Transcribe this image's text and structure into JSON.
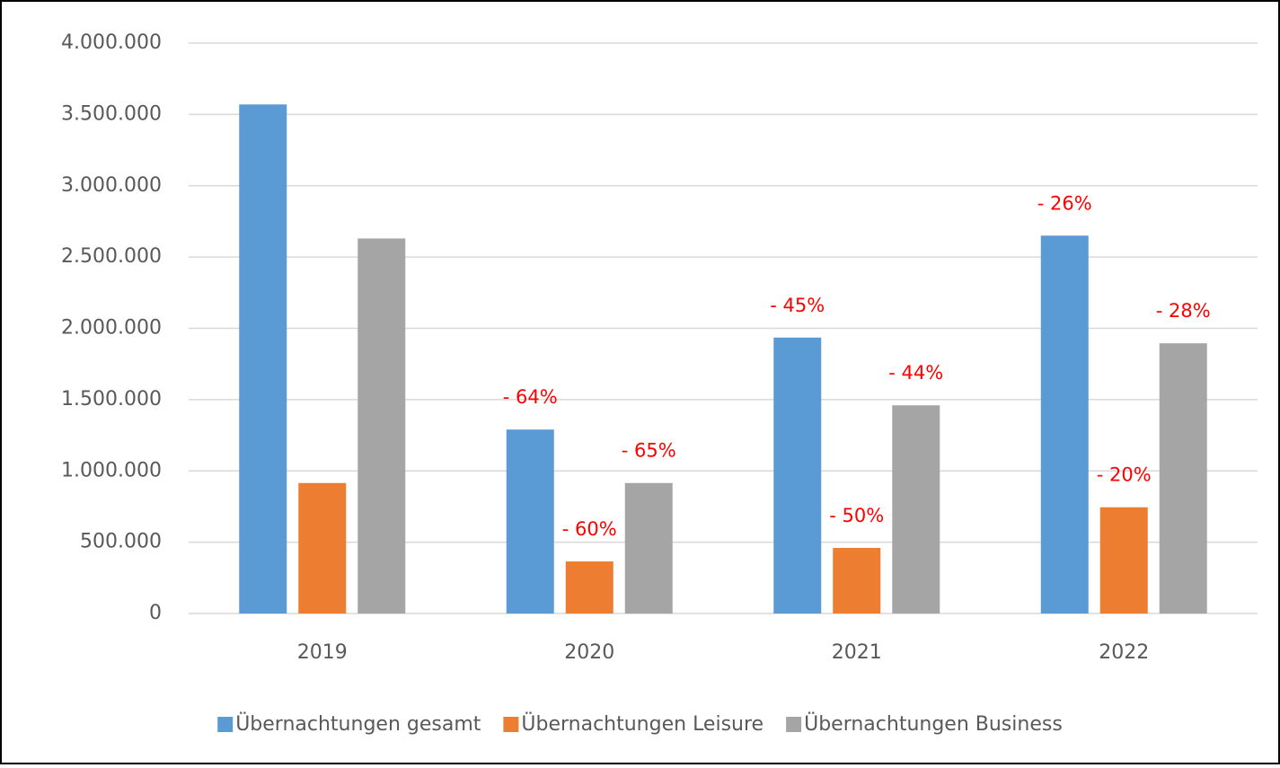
{
  "chart_data": {
    "type": "bar",
    "categories": [
      "2019",
      "2020",
      "2021",
      "2022"
    ],
    "series": [
      {
        "name": "Übernachtungen gesamt",
        "color": "#5b9bd5",
        "values": [
          3570000,
          1290000,
          1935000,
          2650000
        ],
        "change_labels": [
          null,
          "- 64%",
          "- 45%",
          "- 26%"
        ]
      },
      {
        "name": "Übernachtungen Leisure",
        "color": "#ed7d31",
        "values": [
          915000,
          365000,
          460000,
          745000
        ],
        "change_labels": [
          null,
          "- 60%",
          "- 50%",
          "- 20%"
        ]
      },
      {
        "name": "Übernachtungen Business",
        "color": "#a5a5a5",
        "values": [
          2630000,
          915000,
          1460000,
          1895000
        ],
        "change_labels": [
          null,
          "- 65%",
          "- 44%",
          "- 28%"
        ]
      }
    ],
    "ylim": [
      0,
      4000000
    ],
    "yticks": [
      0,
      {
        "value": 500000,
        "label": "500.000"
      },
      {
        "value": 1000000,
        "label": "1.000.000"
      },
      {
        "value": 1500000,
        "label": "1.500.000"
      },
      {
        "value": 2000000,
        "label": "2.000.000"
      },
      {
        "value": 2500000,
        "label": "2.500.000"
      },
      {
        "value": 3000000,
        "label": "3.000.000"
      },
      {
        "value": 3500000,
        "label": "3.500.000"
      },
      {
        "value": 4000000,
        "label": "4.000.000"
      }
    ],
    "grid": true,
    "legend": "bottom"
  }
}
